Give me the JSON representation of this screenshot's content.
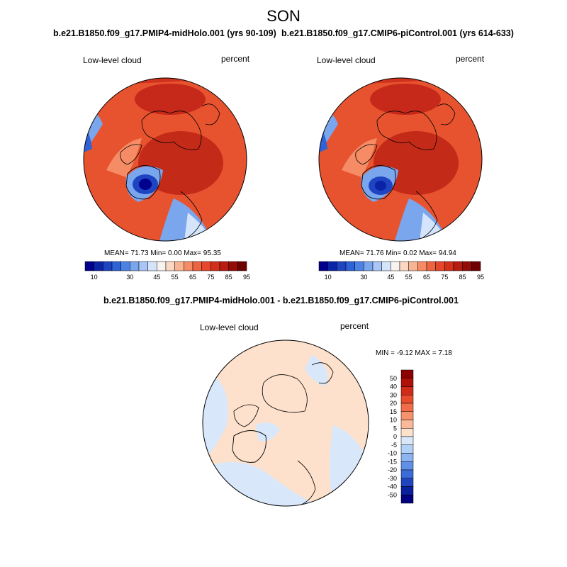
{
  "figure": {
    "title": "SON"
  },
  "chart_data": [
    {
      "type": "heatmap",
      "projection": "north-polar-stereographic",
      "title": "b.e21.B1850.f09_g17.PMIP4-midHolo.001 (yrs 90-109)",
      "left_label": "Low-level cloud",
      "right_label": "percent",
      "stats_text": "MEAN= 71.73  Min=  0.00  Max=  95.35",
      "stats": {
        "mean": 71.73,
        "min": 0.0,
        "max": 95.35
      },
      "colorbar": {
        "levels": [
          10,
          15,
          20,
          25,
          30,
          35,
          40,
          45,
          50,
          55,
          60,
          65,
          70,
          75,
          80,
          85,
          90,
          95
        ],
        "tick_labels": [
          "10",
          "30",
          "45",
          "55",
          "65",
          "75",
          "85",
          "95"
        ],
        "colors": [
          "#00008c",
          "#0b23a6",
          "#1e44c2",
          "#2f62d6",
          "#4b82e3",
          "#7aa6ee",
          "#a9c6f6",
          "#d4e4fa",
          "#f8f3ee",
          "#fcd8c2",
          "#f9b493",
          "#f58c66",
          "#ef6440",
          "#e6462a",
          "#d2301b",
          "#b61c10",
          "#930c07",
          "#6e0000"
        ]
      }
    },
    {
      "type": "heatmap",
      "projection": "north-polar-stereographic",
      "title": "b.e21.B1850.f09_g17.CMIP6-piControl.001 (yrs 614-633)",
      "left_label": "Low-level cloud",
      "right_label": "percent",
      "stats_text": "MEAN= 71.76  Min=  0.02  Max=  94.94",
      "stats": {
        "mean": 71.76,
        "min": 0.02,
        "max": 94.94
      },
      "colorbar": {
        "levels": [
          10,
          15,
          20,
          25,
          30,
          35,
          40,
          45,
          50,
          55,
          60,
          65,
          70,
          75,
          80,
          85,
          90,
          95
        ],
        "tick_labels": [
          "10",
          "30",
          "45",
          "55",
          "65",
          "75",
          "85",
          "95"
        ],
        "colors": [
          "#00008c",
          "#0b23a6",
          "#1e44c2",
          "#2f62d6",
          "#4b82e3",
          "#7aa6ee",
          "#a9c6f6",
          "#d4e4fa",
          "#f8f3ee",
          "#fcd8c2",
          "#f9b493",
          "#f58c66",
          "#ef6440",
          "#e6462a",
          "#d2301b",
          "#b61c10",
          "#930c07",
          "#6e0000"
        ]
      }
    },
    {
      "type": "heatmap",
      "projection": "north-polar-stereographic",
      "title": "b.e21.B1850.f09_g17.PMIP4-midHolo.001 - b.e21.B1850.f09_g17.CMIP6-piControl.001",
      "left_label": "Low-level cloud",
      "right_label": "percent",
      "stats_text": "MIN =  -9.12 MAX =   7.18",
      "stats": {
        "min": -9.12,
        "max": 7.18
      },
      "colorbar": {
        "levels": [
          50,
          40,
          30,
          20,
          15,
          10,
          5,
          0,
          -5,
          -10,
          -15,
          -20,
          -30,
          -40,
          -50
        ],
        "tick_labels": [
          "50",
          "40",
          "30",
          "20",
          "15",
          "10",
          "5",
          "0",
          "-5",
          "-10",
          "-15",
          "-20",
          "-30",
          "-40",
          "-50"
        ],
        "colors": [
          "#8c0000",
          "#b0100a",
          "#d02a18",
          "#e84c2c",
          "#f26c48",
          "#f7926c",
          "#fbb998",
          "#fde1cc",
          "#d8e8fa",
          "#b3d0f6",
          "#8cb4f0",
          "#5f8fe6",
          "#3a6bd8",
          "#1f44be",
          "#0a1f9c",
          "#000080"
        ]
      }
    }
  ]
}
